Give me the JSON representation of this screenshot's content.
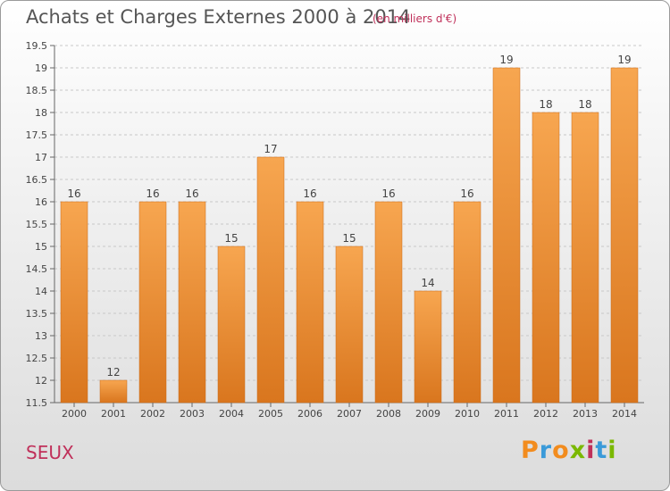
{
  "header": {
    "title": "Achats et Charges Externes 2000 à 2014",
    "subtitle": "(en milliers d'€)"
  },
  "footer": {
    "place": "SEUX",
    "logo": {
      "text": "Proxiti",
      "letter_colors": [
        "#f28c1e",
        "#3a9ad9",
        "#f28c1e",
        "#7ab800",
        "#c0305a",
        "#3a9ad9",
        "#7ab800"
      ]
    }
  },
  "colors": {
    "bar_light": "#f7a650",
    "bar_dark": "#d9761e",
    "grid": "#c8c8c8",
    "axis_text": "#444444"
  },
  "chart_data": {
    "type": "bar",
    "categories": [
      "2000",
      "2001",
      "2002",
      "2003",
      "2004",
      "2005",
      "2006",
      "2007",
      "2008",
      "2009",
      "2010",
      "2011",
      "2012",
      "2013",
      "2014"
    ],
    "values": [
      16,
      12,
      16,
      16,
      15,
      17,
      16,
      15,
      16,
      14,
      16,
      19,
      18,
      18,
      19
    ],
    "title": "Achats et Charges Externes 2000 à 2014",
    "ylim": [
      11.5,
      19.5
    ],
    "yticks": [
      11.5,
      12,
      12.5,
      13,
      13.5,
      14,
      14.5,
      15,
      15.5,
      16,
      16.5,
      17,
      17.5,
      18,
      18.5,
      19,
      19.5
    ],
    "grid": true,
    "data_labels": true
  }
}
